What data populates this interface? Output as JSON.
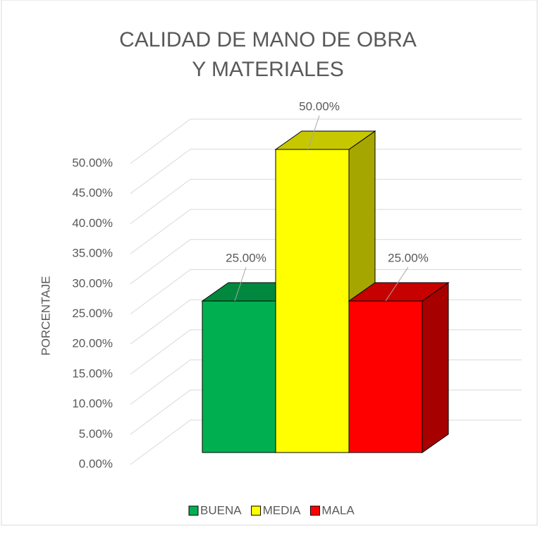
{
  "chart_data": {
    "type": "bar3d",
    "title": "CALIDAD DE MANO DE OBRA Y MATERIALES",
    "y_label": "PORCENTAJE",
    "series": [
      {
        "name": "BUENA",
        "color": "#00b050",
        "values": [
          25
        ],
        "value_labels": [
          "25.00%"
        ]
      },
      {
        "name": "MEDIA",
        "color": "#ffff00",
        "values": [
          50
        ],
        "value_labels": [
          "50.00%"
        ]
      },
      {
        "name": "MALA",
        "color": "#ff0000",
        "values": [
          25
        ],
        "value_labels": [
          "25.00%"
        ]
      }
    ],
    "ylim": [
      0,
      50
    ],
    "yticks": [
      {
        "value": 0,
        "label": "0.00%"
      },
      {
        "value": 5,
        "label": "5.00%"
      },
      {
        "value": 10,
        "label": "10.00%"
      },
      {
        "value": 15,
        "label": "15.00%"
      },
      {
        "value": 20,
        "label": "20.00%"
      },
      {
        "value": 25,
        "label": "25.00%"
      },
      {
        "value": 30,
        "label": "30.00%"
      },
      {
        "value": 35,
        "label": "35.00%"
      },
      {
        "value": 40,
        "label": "40.00%"
      },
      {
        "value": 45,
        "label": "45.00%"
      },
      {
        "value": 50,
        "label": "50.00%"
      }
    ],
    "grid": true,
    "legend": "bottom"
  }
}
